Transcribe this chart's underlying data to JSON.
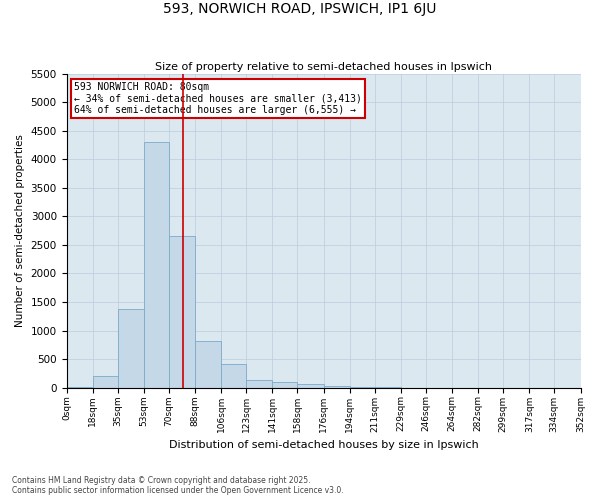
{
  "title": "593, NORWICH ROAD, IPSWICH, IP1 6JU",
  "subtitle": "Size of property relative to semi-detached houses in Ipswich",
  "xlabel": "Distribution of semi-detached houses by size in Ipswich",
  "ylabel": "Number of semi-detached properties",
  "property_size": 80,
  "annotation_title": "593 NORWICH ROAD: 80sqm",
  "annotation_line1": "← 34% of semi-detached houses are smaller (3,413)",
  "annotation_line2": "64% of semi-detached houses are larger (6,555) →",
  "footer_line1": "Contains HM Land Registry data © Crown copyright and database right 2025.",
  "footer_line2": "Contains public sector information licensed under the Open Government Licence v3.0.",
  "bin_labels": [
    "0sqm",
    "18sqm",
    "35sqm",
    "53sqm",
    "70sqm",
    "88sqm",
    "106sqm",
    "123sqm",
    "141sqm",
    "158sqm",
    "176sqm",
    "194sqm",
    "211sqm",
    "229sqm",
    "246sqm",
    "264sqm",
    "282sqm",
    "299sqm",
    "317sqm",
    "334sqm",
    "352sqm"
  ],
  "bin_edges": [
    0,
    18,
    35,
    53,
    70,
    88,
    106,
    123,
    141,
    158,
    176,
    194,
    211,
    229,
    246,
    264,
    282,
    299,
    317,
    334,
    352
  ],
  "bar_heights": [
    20,
    200,
    1380,
    4300,
    2650,
    820,
    420,
    130,
    100,
    60,
    25,
    5,
    3,
    1,
    1,
    0,
    0,
    0,
    0,
    0
  ],
  "bar_color": "#c5d8e8",
  "bar_edge_color": "#7aaac8",
  "red_line_color": "#cc0000",
  "annotation_box_color": "#cc0000",
  "grid_color": "#bbccdd",
  "background_color": "#dce8f0",
  "ylim": [
    0,
    5500
  ],
  "yticks": [
    0,
    500,
    1000,
    1500,
    2000,
    2500,
    3000,
    3500,
    4000,
    4500,
    5000,
    5500
  ]
}
